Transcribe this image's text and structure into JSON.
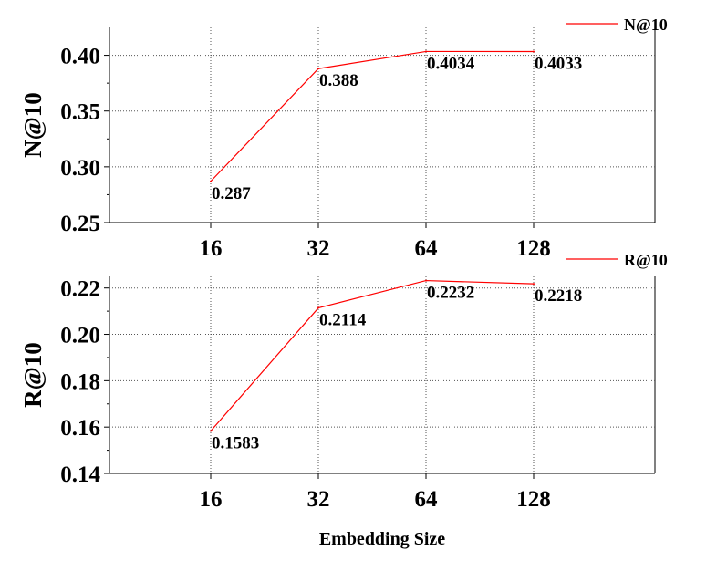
{
  "chart_data": [
    {
      "type": "line",
      "categories": [
        "16",
        "32",
        "64",
        "128"
      ],
      "series": [
        {
          "name": "N@10",
          "color": "#ff0000",
          "values": [
            0.287,
            0.388,
            0.4034,
            0.4033
          ]
        }
      ],
      "data_labels": [
        "0.287",
        "0.388",
        "0.4034",
        "0.4033"
      ],
      "ylabel": "N@10",
      "ylim": [
        0.25,
        0.425
      ],
      "yticks": [
        "0.25",
        "0.30",
        "0.35",
        "0.40"
      ],
      "ytick_values": [
        0.25,
        0.3,
        0.35,
        0.4
      ],
      "grid": true,
      "legend": "top-right"
    },
    {
      "type": "line",
      "categories": [
        "16",
        "32",
        "64",
        "128"
      ],
      "series": [
        {
          "name": "R@10",
          "color": "#ff0000",
          "values": [
            0.1583,
            0.2114,
            0.2232,
            0.2218
          ]
        }
      ],
      "data_labels": [
        "0.1583",
        "0.2114",
        "0.2232",
        "0.2218"
      ],
      "ylabel": "R@10",
      "ylim": [
        0.14,
        0.225
      ],
      "yticks": [
        "0.14",
        "0.16",
        "0.18",
        "0.20",
        "0.22"
      ],
      "ytick_values": [
        0.14,
        0.16,
        0.18,
        0.2,
        0.22
      ],
      "grid": true,
      "legend": "top-right"
    }
  ],
  "xlabel": "Embedding Size"
}
